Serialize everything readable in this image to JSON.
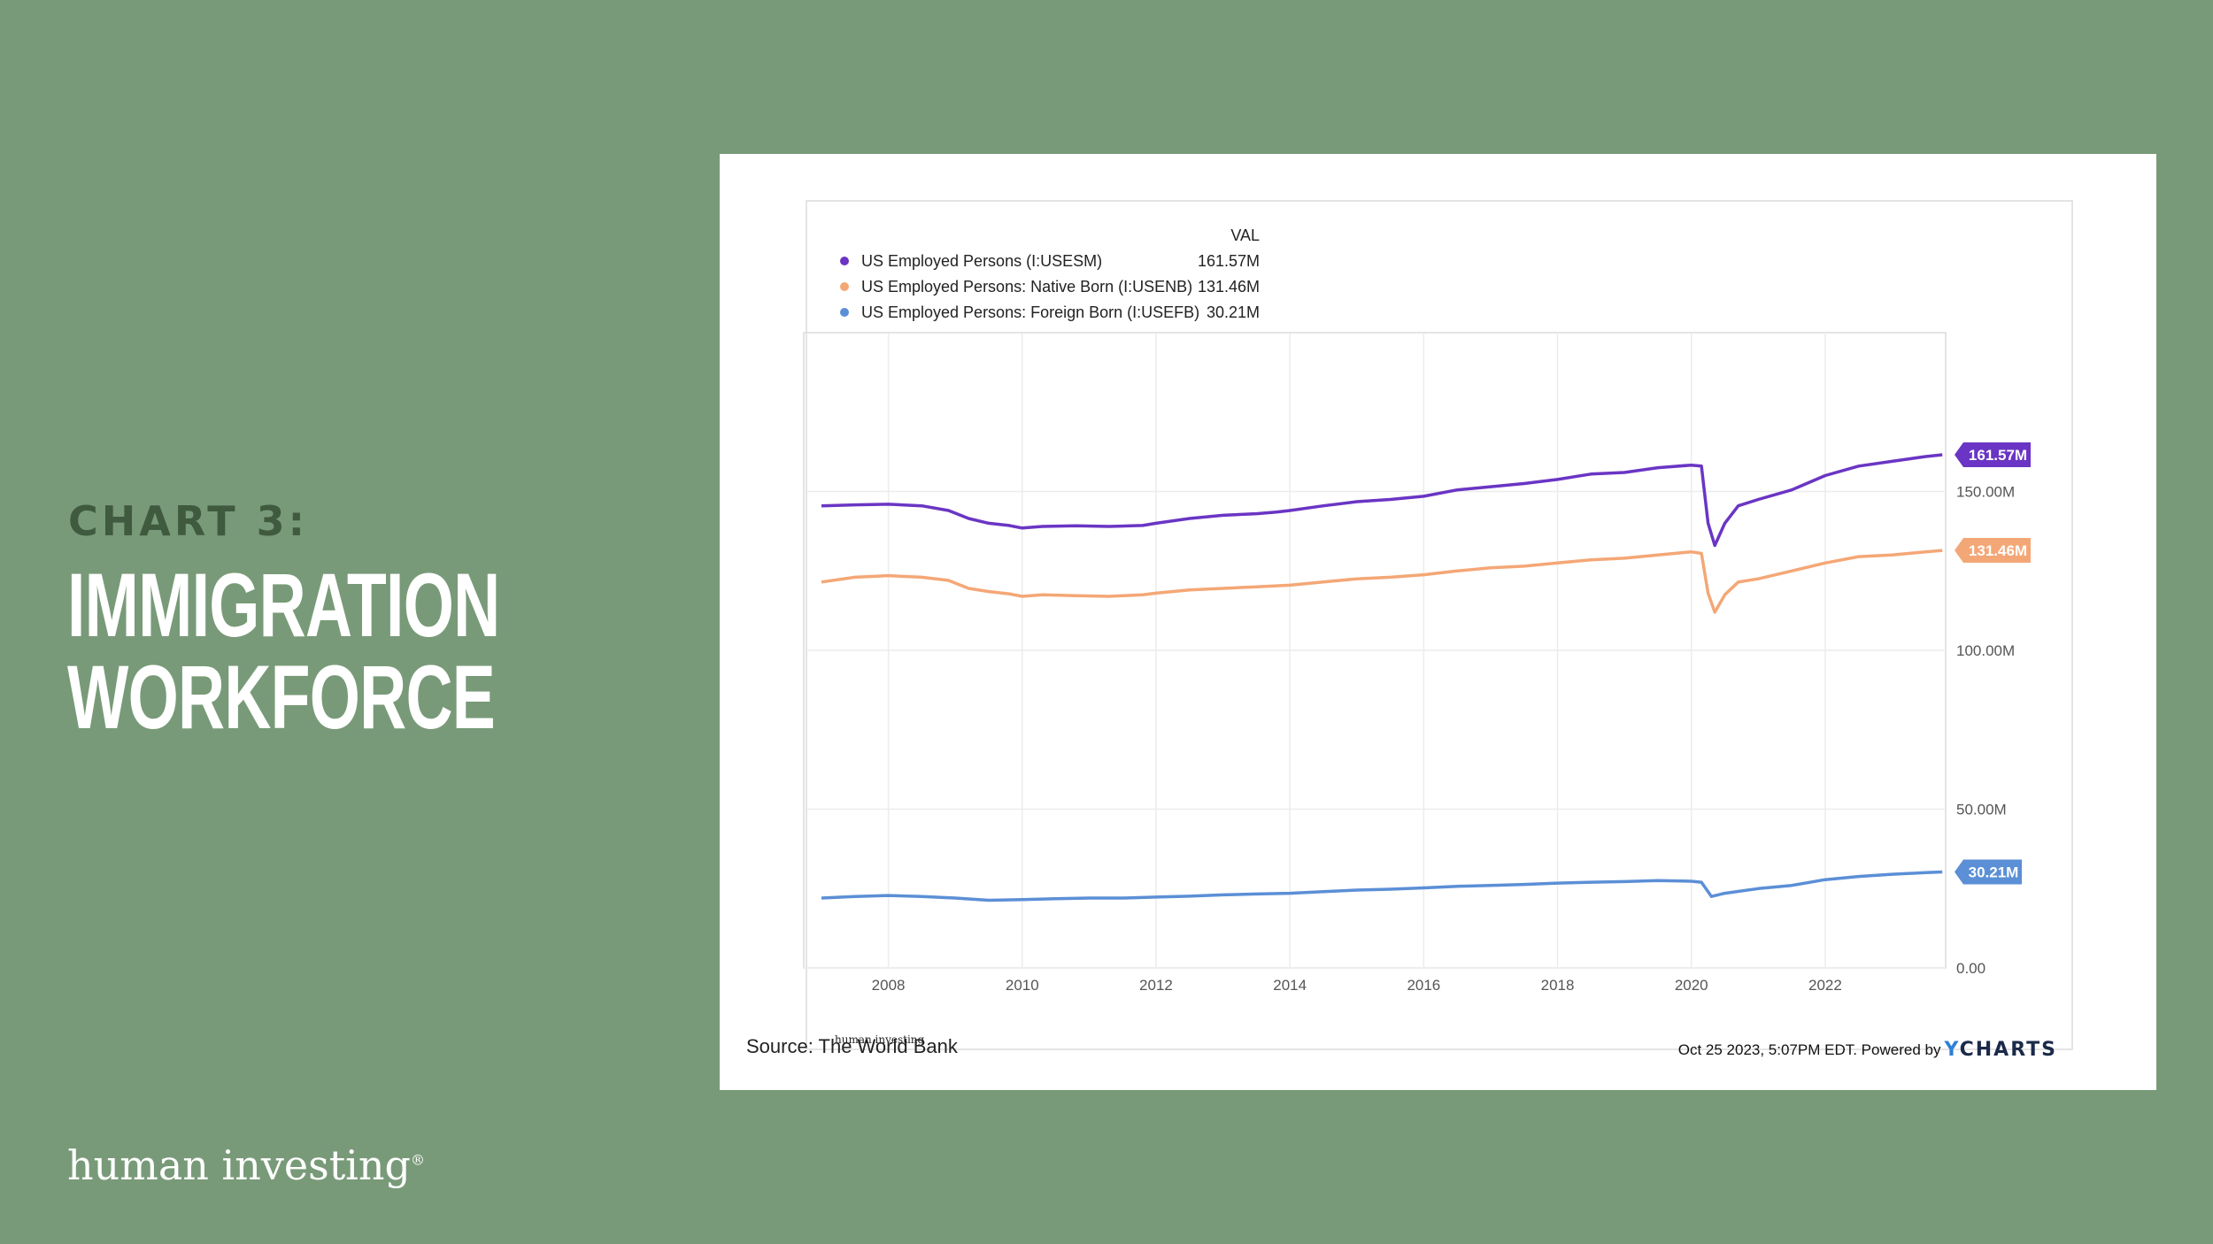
{
  "slide": {
    "kicker": "CHART 3:",
    "title_line1": "IMMIGRATION",
    "title_line2": "WORKFORCE",
    "brand": "human investing",
    "brand_mark": "®"
  },
  "footer": {
    "source": "Source: The World Bank",
    "tiny_brand": "human investing",
    "timestamp": "Oct 25 2023, 5:07PM EDT. Powered by",
    "logo_y": "Y",
    "logo_text": "CHARTS"
  },
  "colors": {
    "background": "#789a78",
    "total": "#6a35c4",
    "native": "#f4a776",
    "foreign": "#5b8fd6"
  },
  "chart_data": {
    "type": "line",
    "legend_header": "VAL",
    "legend_placement": "top-left",
    "grid": true,
    "x_ticks": [
      "2008",
      "2010",
      "2012",
      "2014",
      "2016",
      "2018",
      "2020",
      "2022"
    ],
    "y_ticks": [
      "0.00",
      "50.00M",
      "100.00M",
      "150.00M"
    ],
    "ylim": [
      0,
      200
    ],
    "xlim": [
      2007.0,
      2023.8
    ],
    "series": [
      {
        "name": "US Employed Persons (I:USESM)",
        "legend_value": "161.57M",
        "end_label": "161.57M",
        "color": "#6a35c4",
        "points": [
          [
            2007.0,
            145.5
          ],
          [
            2007.5,
            145.8
          ],
          [
            2008.0,
            146.0
          ],
          [
            2008.5,
            145.5
          ],
          [
            2008.9,
            144.0
          ],
          [
            2009.2,
            141.5
          ],
          [
            2009.5,
            140.0
          ],
          [
            2009.8,
            139.3
          ],
          [
            2010.0,
            138.5
          ],
          [
            2010.3,
            139.0
          ],
          [
            2010.8,
            139.2
          ],
          [
            2011.3,
            139.0
          ],
          [
            2011.8,
            139.3
          ],
          [
            2012.0,
            140.0
          ],
          [
            2012.5,
            141.5
          ],
          [
            2013.0,
            142.5
          ],
          [
            2013.5,
            143.0
          ],
          [
            2013.8,
            143.5
          ],
          [
            2014.0,
            144.0
          ],
          [
            2014.5,
            145.5
          ],
          [
            2015.0,
            146.8
          ],
          [
            2015.5,
            147.5
          ],
          [
            2016.0,
            148.5
          ],
          [
            2016.5,
            150.5
          ],
          [
            2017.0,
            151.5
          ],
          [
            2017.5,
            152.5
          ],
          [
            2018.0,
            153.8
          ],
          [
            2018.5,
            155.5
          ],
          [
            2019.0,
            156.0
          ],
          [
            2019.5,
            157.5
          ],
          [
            2020.0,
            158.3
          ],
          [
            2020.15,
            158.0
          ],
          [
            2020.25,
            140.0
          ],
          [
            2020.35,
            133.0
          ],
          [
            2020.5,
            140.0
          ],
          [
            2020.7,
            145.5
          ],
          [
            2021.0,
            147.5
          ],
          [
            2021.5,
            150.5
          ],
          [
            2022.0,
            155.0
          ],
          [
            2022.5,
            158.0
          ],
          [
            2023.0,
            159.5
          ],
          [
            2023.5,
            161.0
          ],
          [
            2023.75,
            161.57
          ]
        ]
      },
      {
        "name": "US Employed Persons: Native Born (I:USENB)",
        "legend_value": "131.46M",
        "end_label": "131.46M",
        "color": "#f4a776",
        "points": [
          [
            2007.0,
            121.5
          ],
          [
            2007.5,
            123.0
          ],
          [
            2008.0,
            123.5
          ],
          [
            2008.5,
            123.0
          ],
          [
            2008.9,
            122.0
          ],
          [
            2009.2,
            119.5
          ],
          [
            2009.5,
            118.5
          ],
          [
            2009.8,
            117.8
          ],
          [
            2010.0,
            117.0
          ],
          [
            2010.3,
            117.5
          ],
          [
            2010.8,
            117.2
          ],
          [
            2011.3,
            117.0
          ],
          [
            2011.8,
            117.5
          ],
          [
            2012.0,
            118.0
          ],
          [
            2012.5,
            119.0
          ],
          [
            2013.0,
            119.5
          ],
          [
            2013.5,
            120.0
          ],
          [
            2014.0,
            120.5
          ],
          [
            2014.5,
            121.5
          ],
          [
            2015.0,
            122.5
          ],
          [
            2015.5,
            123.0
          ],
          [
            2016.0,
            123.8
          ],
          [
            2016.5,
            125.0
          ],
          [
            2017.0,
            126.0
          ],
          [
            2017.5,
            126.5
          ],
          [
            2018.0,
            127.5
          ],
          [
            2018.5,
            128.5
          ],
          [
            2019.0,
            129.0
          ],
          [
            2019.5,
            130.0
          ],
          [
            2020.0,
            131.0
          ],
          [
            2020.15,
            130.5
          ],
          [
            2020.25,
            118.0
          ],
          [
            2020.35,
            112.0
          ],
          [
            2020.5,
            117.5
          ],
          [
            2020.7,
            121.5
          ],
          [
            2021.0,
            122.5
          ],
          [
            2021.5,
            125.0
          ],
          [
            2022.0,
            127.5
          ],
          [
            2022.5,
            129.5
          ],
          [
            2023.0,
            130.0
          ],
          [
            2023.5,
            131.0
          ],
          [
            2023.75,
            131.46
          ]
        ]
      },
      {
        "name": "US Employed Persons: Foreign Born (I:USEFB)",
        "legend_value": "30.21M",
        "end_label": "30.21M",
        "color": "#5b8fd6",
        "points": [
          [
            2007.0,
            22.0
          ],
          [
            2007.5,
            22.5
          ],
          [
            2008.0,
            22.8
          ],
          [
            2008.5,
            22.5
          ],
          [
            2009.0,
            22.0
          ],
          [
            2009.5,
            21.3
          ],
          [
            2010.0,
            21.5
          ],
          [
            2010.5,
            21.8
          ],
          [
            2011.0,
            22.0
          ],
          [
            2011.5,
            22.0
          ],
          [
            2012.0,
            22.3
          ],
          [
            2012.5,
            22.6
          ],
          [
            2013.0,
            23.0
          ],
          [
            2013.5,
            23.3
          ],
          [
            2014.0,
            23.5
          ],
          [
            2014.5,
            24.0
          ],
          [
            2015.0,
            24.5
          ],
          [
            2015.5,
            24.8
          ],
          [
            2016.0,
            25.2
          ],
          [
            2016.5,
            25.7
          ],
          [
            2017.0,
            26.0
          ],
          [
            2017.5,
            26.3
          ],
          [
            2018.0,
            26.7
          ],
          [
            2018.5,
            27.0
          ],
          [
            2019.0,
            27.2
          ],
          [
            2019.5,
            27.5
          ],
          [
            2020.0,
            27.3
          ],
          [
            2020.15,
            27.0
          ],
          [
            2020.3,
            22.5
          ],
          [
            2020.5,
            23.5
          ],
          [
            2021.0,
            25.0
          ],
          [
            2021.5,
            26.0
          ],
          [
            2022.0,
            27.8
          ],
          [
            2022.5,
            28.8
          ],
          [
            2023.0,
            29.5
          ],
          [
            2023.5,
            30.0
          ],
          [
            2023.75,
            30.21
          ]
        ]
      }
    ]
  }
}
